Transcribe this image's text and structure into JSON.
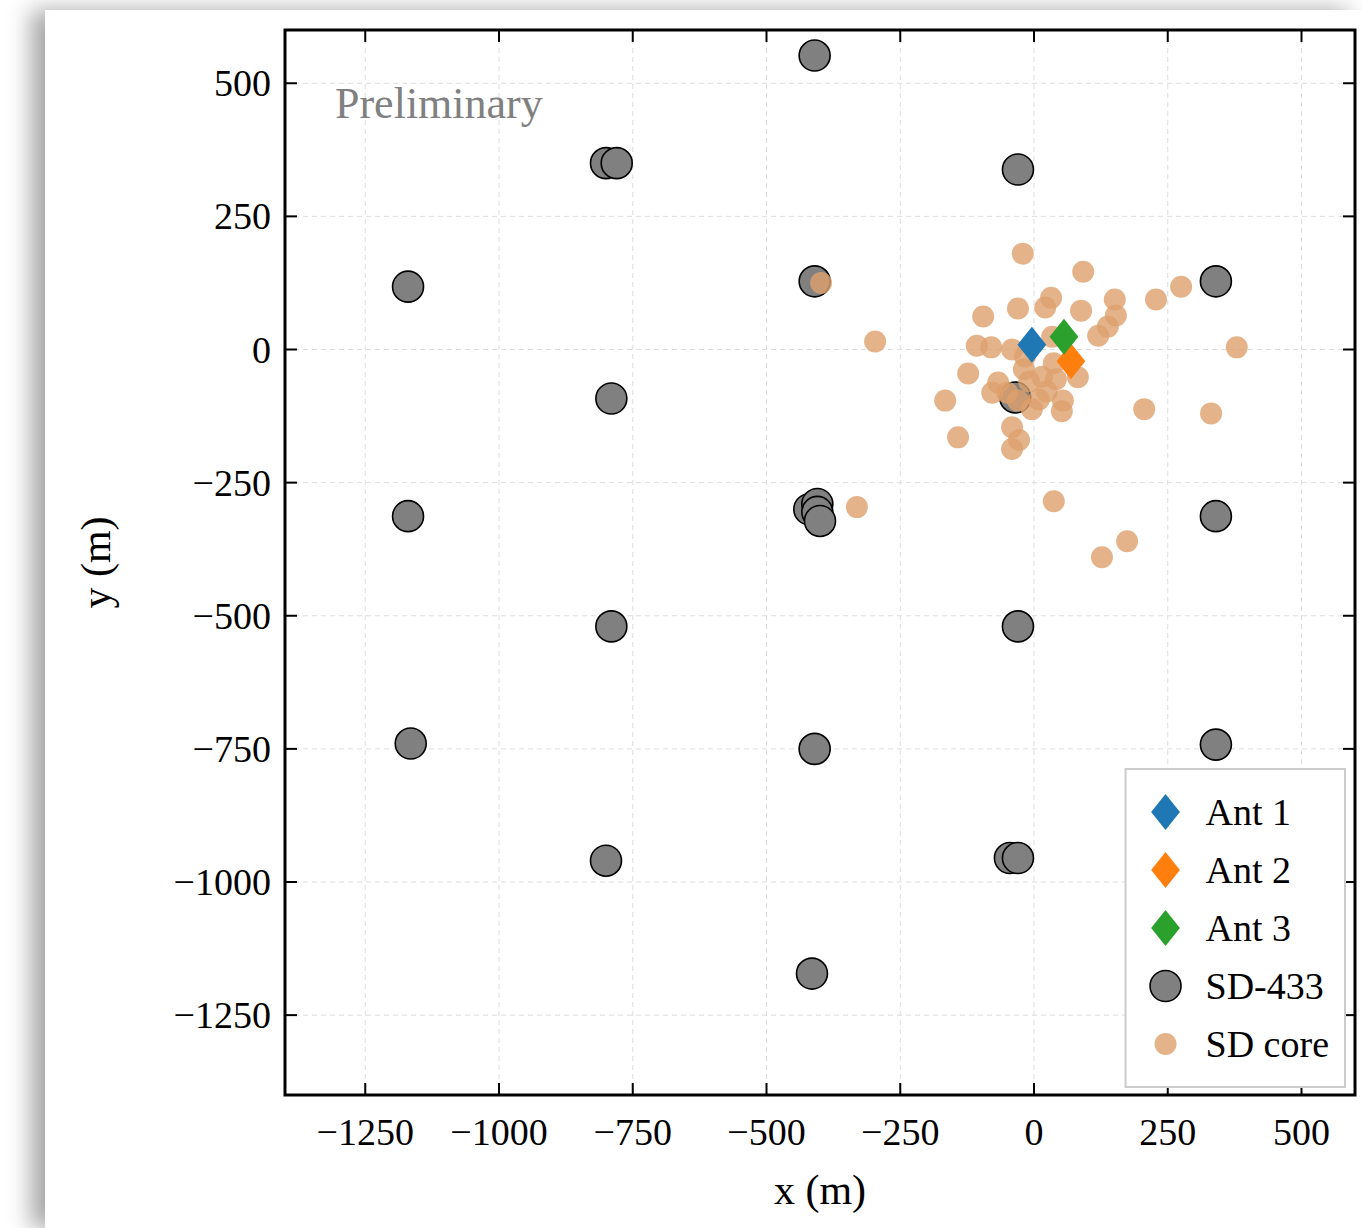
{
  "chart_data": {
    "type": "scatter",
    "annotation": "Preliminary",
    "x_label": "x (m)",
    "y_label": "y (m)",
    "xlim": [
      -1400,
      600
    ],
    "ylim": [
      -1400,
      600
    ],
    "xticks": [
      {
        "value": -1250,
        "label": "−1250"
      },
      {
        "value": -1000,
        "label": "−1000"
      },
      {
        "value": -750,
        "label": "−750"
      },
      {
        "value": -500,
        "label": "−500"
      },
      {
        "value": -250,
        "label": "−250"
      },
      0,
      250,
      500
    ],
    "yticks": [
      {
        "value": -1250,
        "label": "−1250"
      },
      {
        "value": -1000,
        "label": "−1000"
      },
      {
        "value": -750,
        "label": "−750"
      },
      {
        "value": -500,
        "label": "−500"
      },
      {
        "value": -250,
        "label": "−250"
      },
      0,
      250,
      500
    ],
    "grid": true,
    "legend": "lower right",
    "series": [
      {
        "name": "SD-433",
        "color": "#808080",
        "marker": "circle",
        "x": [
          -800,
          -780,
          -30,
          -1170,
          -410,
          340,
          -790,
          -35,
          -1170,
          -420,
          -405,
          -405,
          -400,
          340,
          -790,
          -30,
          -1165,
          -410,
          340,
          -800,
          -45,
          -30,
          -415,
          -410
        ],
        "values": [
          350,
          350,
          338,
          118,
          128,
          128,
          -92,
          -90,
          -313,
          -300,
          -290,
          -305,
          -322,
          -313,
          -520,
          -520,
          -740,
          -750,
          -742,
          -960,
          -955,
          -955,
          -1172,
          552
        ]
      },
      {
        "name": "SD core",
        "color": "#dda06d",
        "marker": "circle",
        "x": [
          -21,
          92,
          275,
          228,
          151,
          32,
          -30,
          88,
          153,
          21,
          -95,
          138,
          120,
          -297,
          379,
          -107,
          -80,
          -41,
          34,
          -17,
          -19,
          37,
          -123,
          15,
          82,
          -67,
          41,
          -78,
          -50,
          -30,
          -166,
          54,
          9,
          -4,
          52,
          206,
          331,
          -41,
          -142,
          -28,
          -41,
          37,
          -331,
          174,
          127,
          -398,
          -9,
          24
        ],
        "values": [
          180,
          146,
          118,
          94,
          94,
          97,
          77,
          73,
          64,
          79,
          62,
          43,
          26,
          15,
          4,
          7,
          4,
          0,
          24,
          -13,
          -37,
          -26,
          -45,
          -51,
          -52,
          -62,
          -56,
          -81,
          -81,
          -96,
          -96,
          -96,
          -94,
          -112,
          -116,
          -112,
          -120,
          -146,
          -165,
          -170,
          -187,
          -285,
          -296,
          -360,
          -390,
          125,
          -60,
          -79
        ]
      },
      {
        "name": "Ant 1",
        "color": "#1f77b4",
        "marker": "diamond",
        "x": [
          -4
        ],
        "values": [
          9
        ]
      },
      {
        "name": "Ant 2",
        "color": "#ff7f0e",
        "marker": "diamond",
        "x": [
          69
        ],
        "values": [
          -22
        ]
      },
      {
        "name": "Ant 3",
        "color": "#2ca02c",
        "marker": "diamond",
        "x": [
          56
        ],
        "values": [
          24
        ]
      }
    ]
  }
}
